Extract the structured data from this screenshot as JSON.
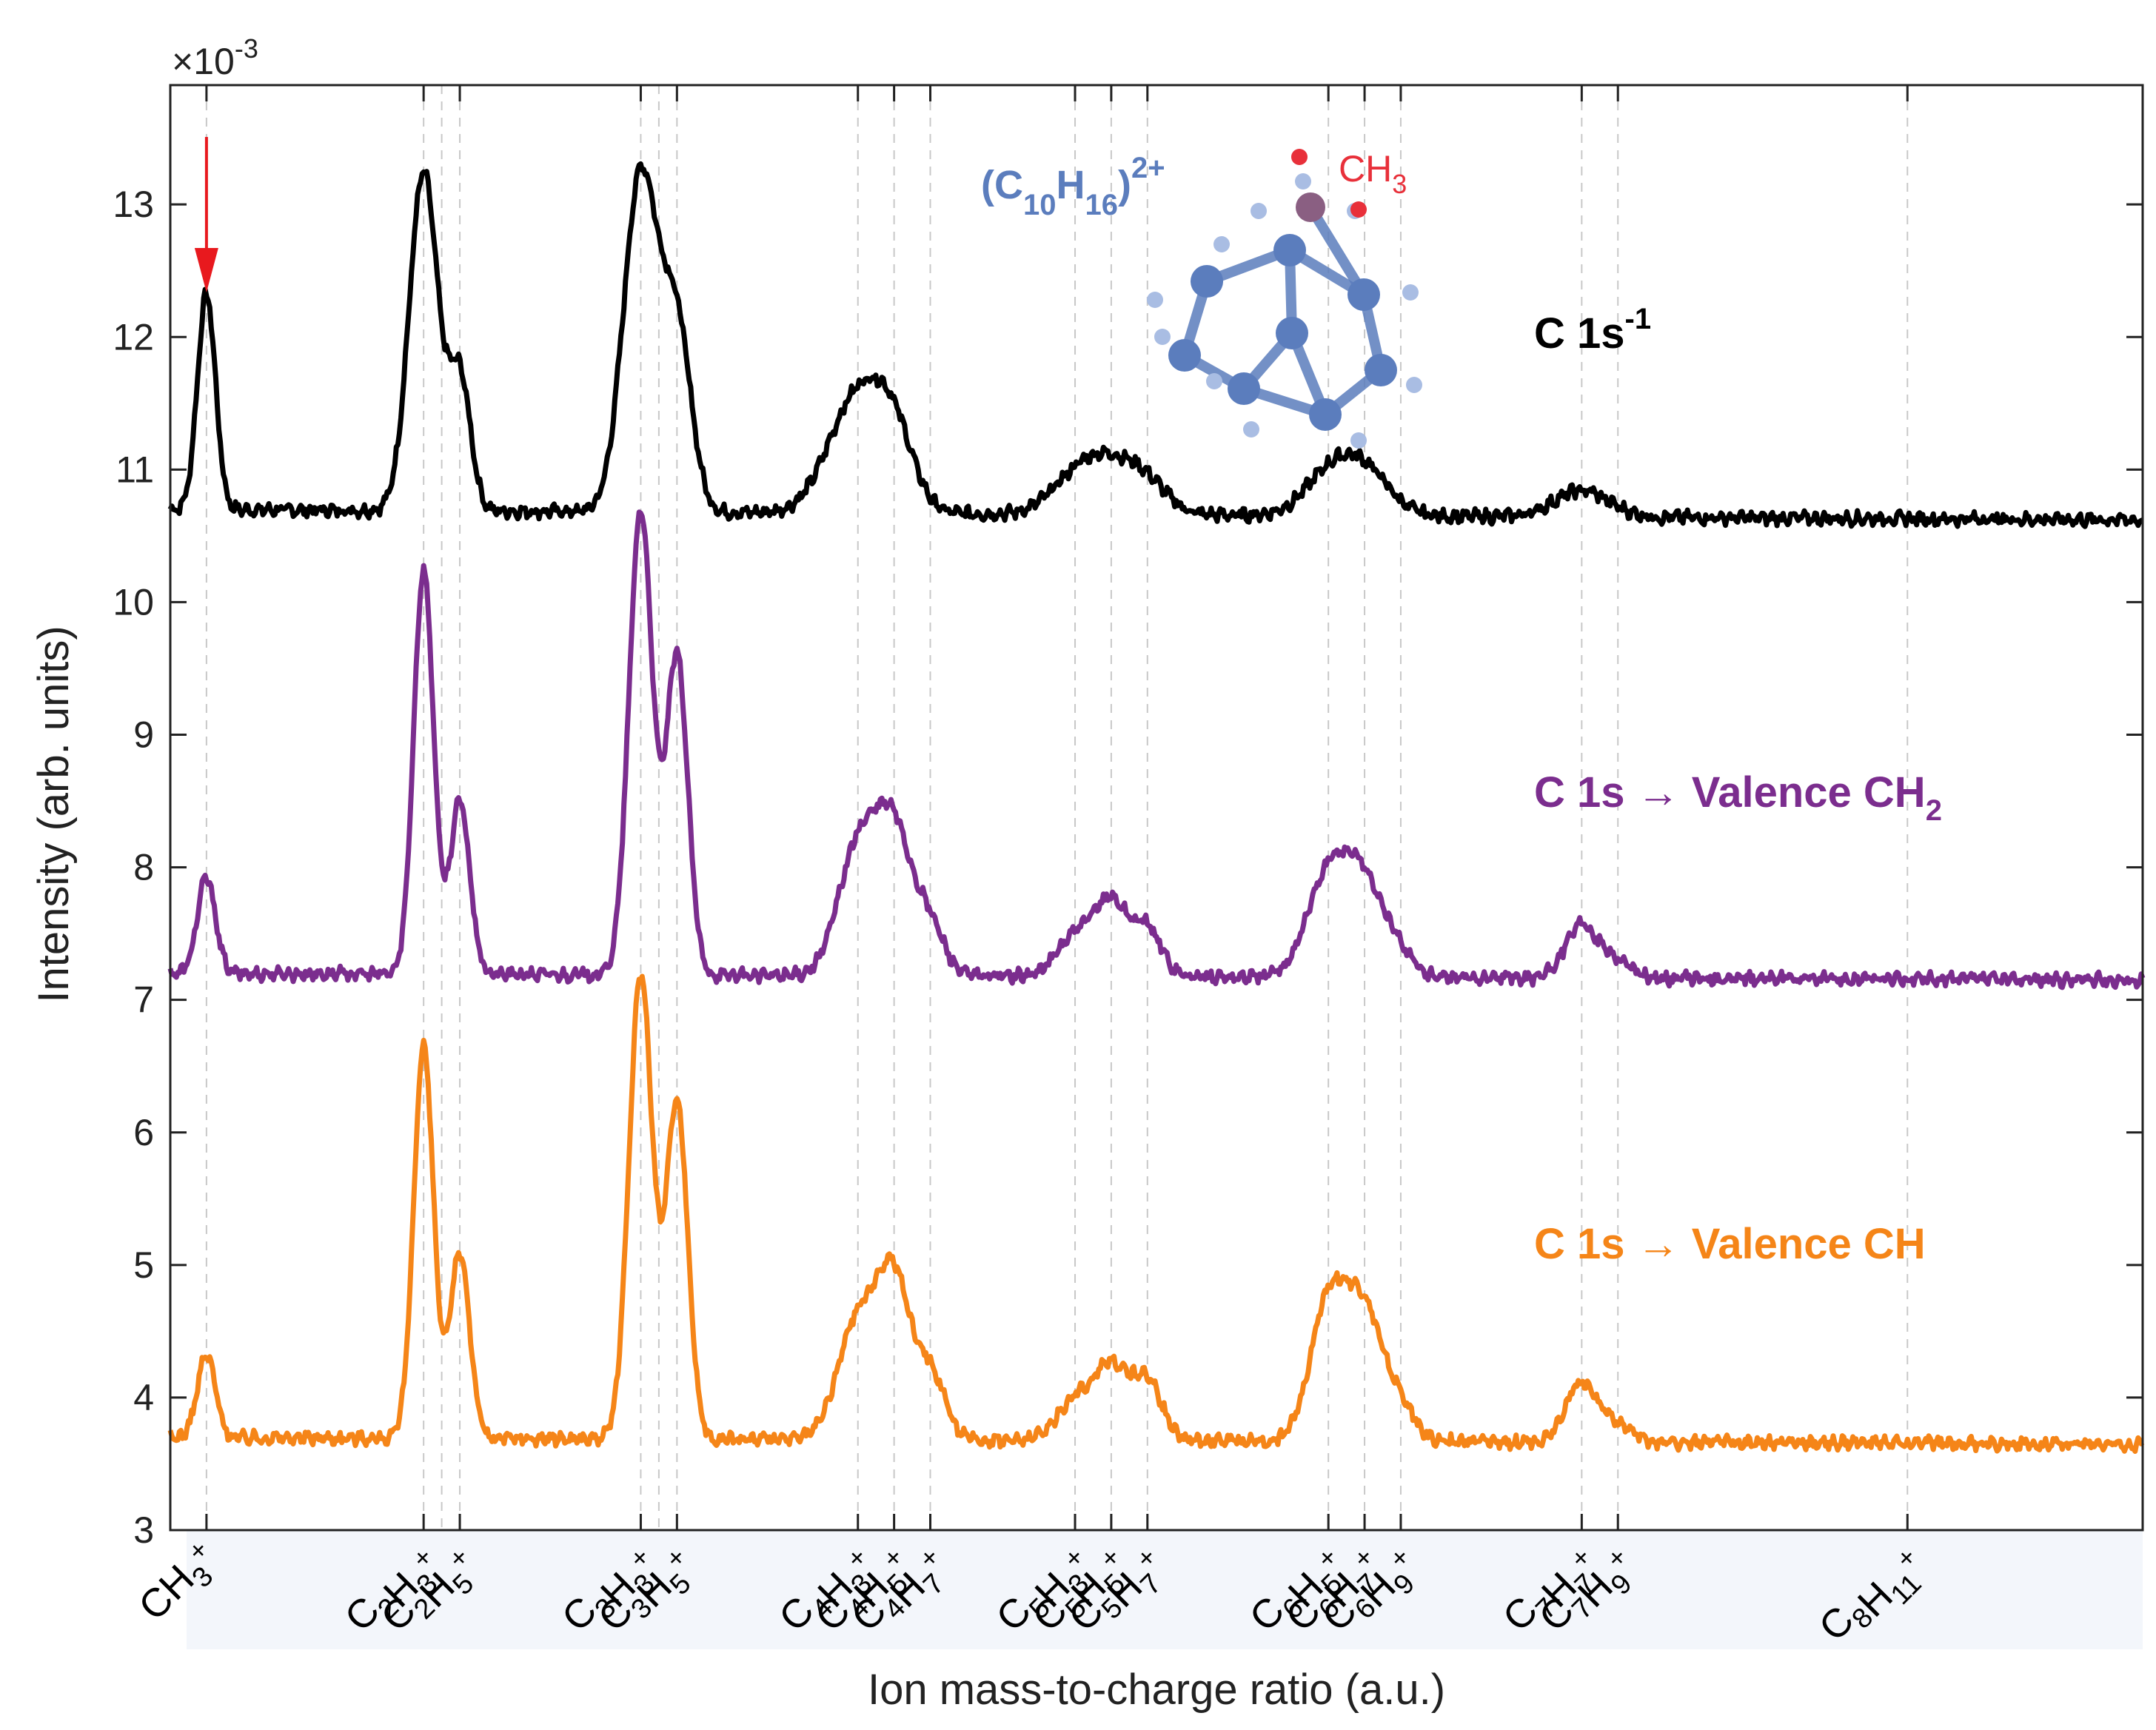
{
  "chart_data": {
    "type": "line",
    "title": "",
    "xlabel": "Ion mass-to-charge ratio (a.u.)",
    "ylabel": "Intensity (arb. units)",
    "y_exponent_label": "×10",
    "y_exponent_power": "-3",
    "ylim": [
      3,
      13.9
    ],
    "xlim": [
      13,
      122
    ],
    "yticks": [
      "3",
      "4",
      "5",
      "6",
      "7",
      "8",
      "9",
      "10",
      "11",
      "12",
      "13"
    ],
    "ion_labels": [
      {
        "x": 15,
        "text": "CH3+",
        "parts": [
          [
            "C",
            ""
          ],
          [
            "H",
            "3"
          ]
        ]
      },
      {
        "x": 27,
        "text": "C2H3+",
        "parts": [
          [
            "C",
            "2"
          ],
          [
            "H",
            "3"
          ]
        ]
      },
      {
        "x": 29,
        "text": "C2H5+",
        "parts": [
          [
            "C",
            "2"
          ],
          [
            "H",
            "5"
          ]
        ]
      },
      {
        "x": 39,
        "text": "C3H3+",
        "parts": [
          [
            "C",
            "3"
          ],
          [
            "H",
            "3"
          ]
        ]
      },
      {
        "x": 41,
        "text": "C3H5+",
        "parts": [
          [
            "C",
            "3"
          ],
          [
            "H",
            "5"
          ]
        ]
      },
      {
        "x": 51,
        "text": "C4H3+",
        "parts": [
          [
            "C",
            "4"
          ],
          [
            "H",
            "3"
          ]
        ]
      },
      {
        "x": 53,
        "text": "C4H5+",
        "parts": [
          [
            "C",
            "4"
          ],
          [
            "H",
            "5"
          ]
        ]
      },
      {
        "x": 55,
        "text": "C4H7+",
        "parts": [
          [
            "C",
            "4"
          ],
          [
            "H",
            "7"
          ]
        ]
      },
      {
        "x": 63,
        "text": "C5H3+",
        "parts": [
          [
            "C",
            "5"
          ],
          [
            "H",
            "3"
          ]
        ]
      },
      {
        "x": 65,
        "text": "C5H5+",
        "parts": [
          [
            "C",
            "5"
          ],
          [
            "H",
            "5"
          ]
        ]
      },
      {
        "x": 67,
        "text": "C5H7+",
        "parts": [
          [
            "C",
            "5"
          ],
          [
            "H",
            "7"
          ]
        ]
      },
      {
        "x": 77,
        "text": "C6H5+",
        "parts": [
          [
            "C",
            "6"
          ],
          [
            "H",
            "5"
          ]
        ]
      },
      {
        "x": 79,
        "text": "C6H7+",
        "parts": [
          [
            "C",
            "6"
          ],
          [
            "H",
            "7"
          ]
        ]
      },
      {
        "x": 81,
        "text": "C6H9+",
        "parts": [
          [
            "C",
            "6"
          ],
          [
            "H",
            "9"
          ]
        ]
      },
      {
        "x": 91,
        "text": "C7H7+",
        "parts": [
          [
            "C",
            "7"
          ],
          [
            "H",
            "7"
          ]
        ]
      },
      {
        "x": 93,
        "text": "C7H9+",
        "parts": [
          [
            "C",
            "7"
          ],
          [
            "H",
            "9"
          ]
        ]
      },
      {
        "x": 109,
        "text": "C8H11+",
        "parts": [
          [
            "C",
            "8"
          ],
          [
            "H",
            "11"
          ]
        ]
      }
    ],
    "extra_gridlines_x": [
      28,
      40
    ],
    "series": [
      {
        "name": "C 1s-1",
        "label_main": "C 1s",
        "label_sup": "-1",
        "color": "#000000",
        "baseline": 10.7,
        "tail": -0.08,
        "peaks": [
          {
            "x": 15,
            "h": 1.62,
            "w": 0.5
          },
          {
            "x": 27,
            "h": 2.55,
            "w": 0.8
          },
          {
            "x": 29,
            "h": 1.0,
            "w": 0.6
          },
          {
            "x": 39,
            "h": 2.55,
            "w": 0.95
          },
          {
            "x": 41,
            "h": 1.35,
            "w": 0.8
          },
          {
            "x": 51,
            "h": 0.88,
            "w": 1.6
          },
          {
            "x": 53,
            "h": 0.45,
            "w": 1.1
          },
          {
            "x": 63,
            "h": 0.25,
            "w": 1.4
          },
          {
            "x": 65,
            "h": 0.32,
            "w": 1.4
          },
          {
            "x": 67,
            "h": 0.2,
            "w": 1.2
          },
          {
            "x": 77,
            "h": 0.28,
            "w": 1.4
          },
          {
            "x": 79,
            "h": 0.32,
            "w": 1.4
          },
          {
            "x": 91,
            "h": 0.2,
            "w": 1.5
          }
        ]
      },
      {
        "name": "C 1s → Valence CH2",
        "label_main": "C 1s → Valence CH",
        "label_sub": "2",
        "color": "#7b2d8e",
        "baseline": 7.2,
        "tail": -0.05,
        "peaks": [
          {
            "x": 15,
            "h": 0.72,
            "w": 0.5
          },
          {
            "x": 27,
            "h": 3.05,
            "w": 0.55
          },
          {
            "x": 29,
            "h": 1.3,
            "w": 0.55
          },
          {
            "x": 39,
            "h": 3.5,
            "w": 0.65
          },
          {
            "x": 41,
            "h": 2.4,
            "w": 0.6
          },
          {
            "x": 51,
            "h": 0.95,
            "w": 1.1
          },
          {
            "x": 53,
            "h": 1.05,
            "w": 1.0
          },
          {
            "x": 55,
            "h": 0.35,
            "w": 0.8
          },
          {
            "x": 63,
            "h": 0.3,
            "w": 1.0
          },
          {
            "x": 65,
            "h": 0.55,
            "w": 0.9
          },
          {
            "x": 67,
            "h": 0.35,
            "w": 0.8
          },
          {
            "x": 77,
            "h": 0.75,
            "w": 1.2
          },
          {
            "x": 79,
            "h": 0.65,
            "w": 1.1
          },
          {
            "x": 81,
            "h": 0.15,
            "w": 0.8
          },
          {
            "x": 91,
            "h": 0.4,
            "w": 0.9
          },
          {
            "x": 93,
            "h": 0.12,
            "w": 0.8
          }
        ]
      },
      {
        "name": "C 1s → Valence CH",
        "label_main": "C 1s → Valence CH",
        "color": "#f58518",
        "baseline": 3.7,
        "tail": -0.05,
        "peaks": [
          {
            "x": 15,
            "h": 0.62,
            "w": 0.5
          },
          {
            "x": 27,
            "h": 2.95,
            "w": 0.55
          },
          {
            "x": 29,
            "h": 1.4,
            "w": 0.55
          },
          {
            "x": 39,
            "h": 3.5,
            "w": 0.65
          },
          {
            "x": 41,
            "h": 2.55,
            "w": 0.6
          },
          {
            "x": 51,
            "h": 0.9,
            "w": 1.1
          },
          {
            "x": 53,
            "h": 1.15,
            "w": 0.9
          },
          {
            "x": 55,
            "h": 0.5,
            "w": 0.8
          },
          {
            "x": 63,
            "h": 0.3,
            "w": 1.0
          },
          {
            "x": 65,
            "h": 0.55,
            "w": 0.9
          },
          {
            "x": 67,
            "h": 0.45,
            "w": 0.8
          },
          {
            "x": 77,
            "h": 1.05,
            "w": 1.0
          },
          {
            "x": 79,
            "h": 0.95,
            "w": 1.0
          },
          {
            "x": 81,
            "h": 0.25,
            "w": 0.8
          },
          {
            "x": 91,
            "h": 0.45,
            "w": 0.9
          },
          {
            "x": 93,
            "h": 0.12,
            "w": 0.8
          }
        ]
      }
    ],
    "annotations": {
      "arrow_x": 15,
      "molecule_formula_base": "(C",
      "molecule_formula_c_sub": "10",
      "molecule_formula_h": "H",
      "molecule_formula_h_sub": "16",
      "molecule_formula_close": ")",
      "molecule_formula_charge": "2+",
      "methyl_label": "CH",
      "methyl_sub": "3"
    }
  },
  "colors": {
    "arrow": "#e8191e",
    "molecule": "#5b7dbd",
    "methyl": "#e8303a",
    "tick_band": "#f3f6fb",
    "grid": "#c8c8c8"
  }
}
